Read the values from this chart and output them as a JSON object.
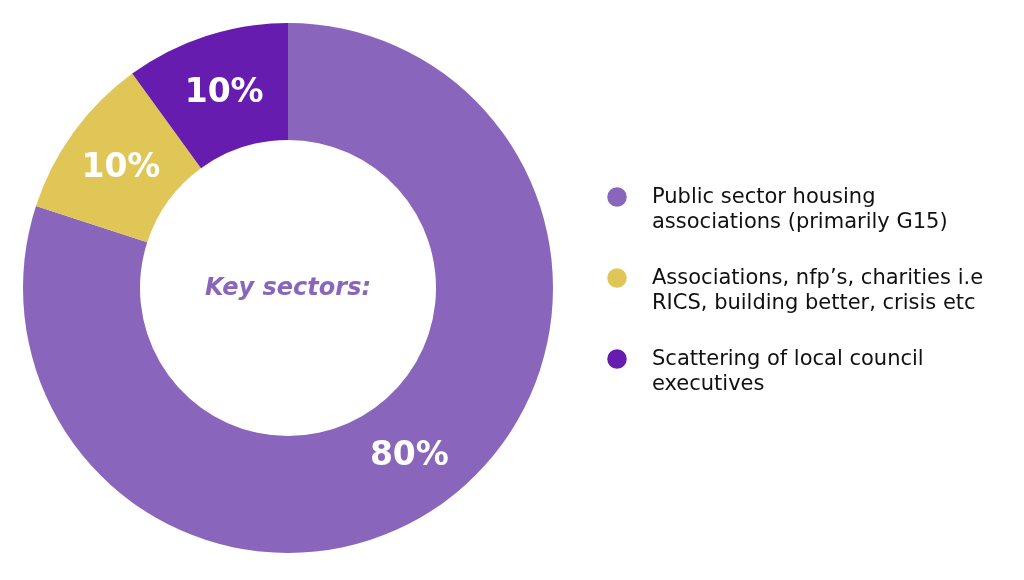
{
  "chart_data": {
    "type": "donut",
    "title": "Key sectors:",
    "categories": [
      "Public sector housing associations (primarily G15)",
      "Associations, nfp’s, charities i.e RICS, building better, crisis etc",
      "Scattering of local council executives"
    ],
    "values": [
      80,
      10,
      10
    ],
    "value_labels": [
      "80%",
      "10%",
      "10%"
    ],
    "colors": [
      "#8966bb",
      "#dfc656",
      "#671cb0"
    ],
    "legend": "right"
  }
}
